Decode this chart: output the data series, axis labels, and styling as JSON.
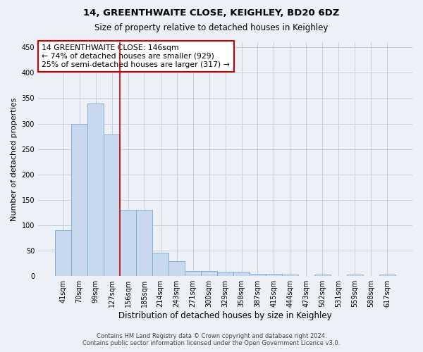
{
  "title1": "14, GREENTHWAITE CLOSE, KEIGHLEY, BD20 6DZ",
  "title2": "Size of property relative to detached houses in Keighley",
  "xlabel": "Distribution of detached houses by size in Keighley",
  "ylabel": "Number of detached properties",
  "categories": [
    "41sqm",
    "70sqm",
    "99sqm",
    "127sqm",
    "156sqm",
    "185sqm",
    "214sqm",
    "243sqm",
    "271sqm",
    "300sqm",
    "329sqm",
    "358sqm",
    "387sqm",
    "415sqm",
    "444sqm",
    "473sqm",
    "502sqm",
    "531sqm",
    "559sqm",
    "588sqm",
    "617sqm"
  ],
  "values": [
    90,
    300,
    340,
    278,
    130,
    130,
    46,
    30,
    10,
    10,
    8,
    8,
    5,
    5,
    3,
    0,
    3,
    0,
    3,
    0,
    3
  ],
  "bar_color": "#c8d8ee",
  "bar_edge_color": "#7aaad0",
  "vline_x": 4.0,
  "vline_color": "#cc0000",
  "annotation_text": "14 GREENTHWAITE CLOSE: 146sqm\n← 74% of detached houses are smaller (929)\n25% of semi-detached houses are larger (317) →",
  "ylim": [
    0,
    460
  ],
  "yticks": [
    0,
    50,
    100,
    150,
    200,
    250,
    300,
    350,
    400,
    450
  ],
  "footer1": "Contains HM Land Registry data © Crown copyright and database right 2024.",
  "footer2": "Contains public sector information licensed under the Open Government Licence v3.0.",
  "bg_color": "#eef0f8",
  "plot_bg_color": "#eef0f8",
  "grid_color": "#c8cce0"
}
